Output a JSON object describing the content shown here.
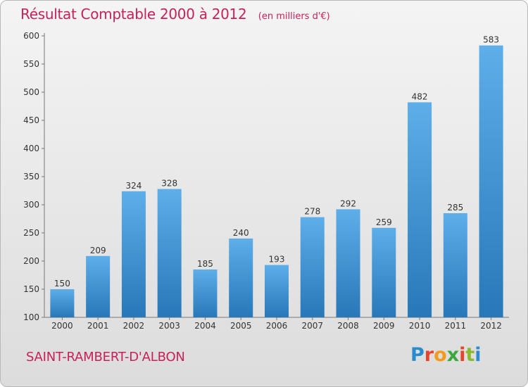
{
  "header": {
    "title": "Résultat Comptable 2000 à 2012",
    "unit": "(en milliers d'€)"
  },
  "footer": {
    "town": "SAINT-RAMBERT-D'ALBON",
    "logo": {
      "text": "Proxiti",
      "colors": [
        "#2a8ccf",
        "#e8432b",
        "#f29a1c",
        "#3aa83a",
        "#e8432b",
        "#8ab82e",
        "#2a8ccf"
      ]
    }
  },
  "colors": {
    "bar_light": "#5eaeea",
    "bar_dark": "#2877b8",
    "title": "#c8205a"
  },
  "chart_data": {
    "type": "bar",
    "title": "Résultat Comptable 2000 à 2012",
    "subtitle": "(en milliers d'€)",
    "categories": [
      "2000",
      "2001",
      "2002",
      "2003",
      "2004",
      "2005",
      "2006",
      "2007",
      "2008",
      "2009",
      "2010",
      "2011",
      "2012"
    ],
    "values": [
      150,
      209,
      324,
      328,
      185,
      240,
      193,
      278,
      292,
      259,
      482,
      285,
      583
    ],
    "ylim": [
      100,
      600
    ],
    "yticks": [
      100,
      150,
      200,
      250,
      300,
      350,
      400,
      450,
      500,
      550,
      600
    ],
    "grid": false,
    "legend": "none"
  }
}
